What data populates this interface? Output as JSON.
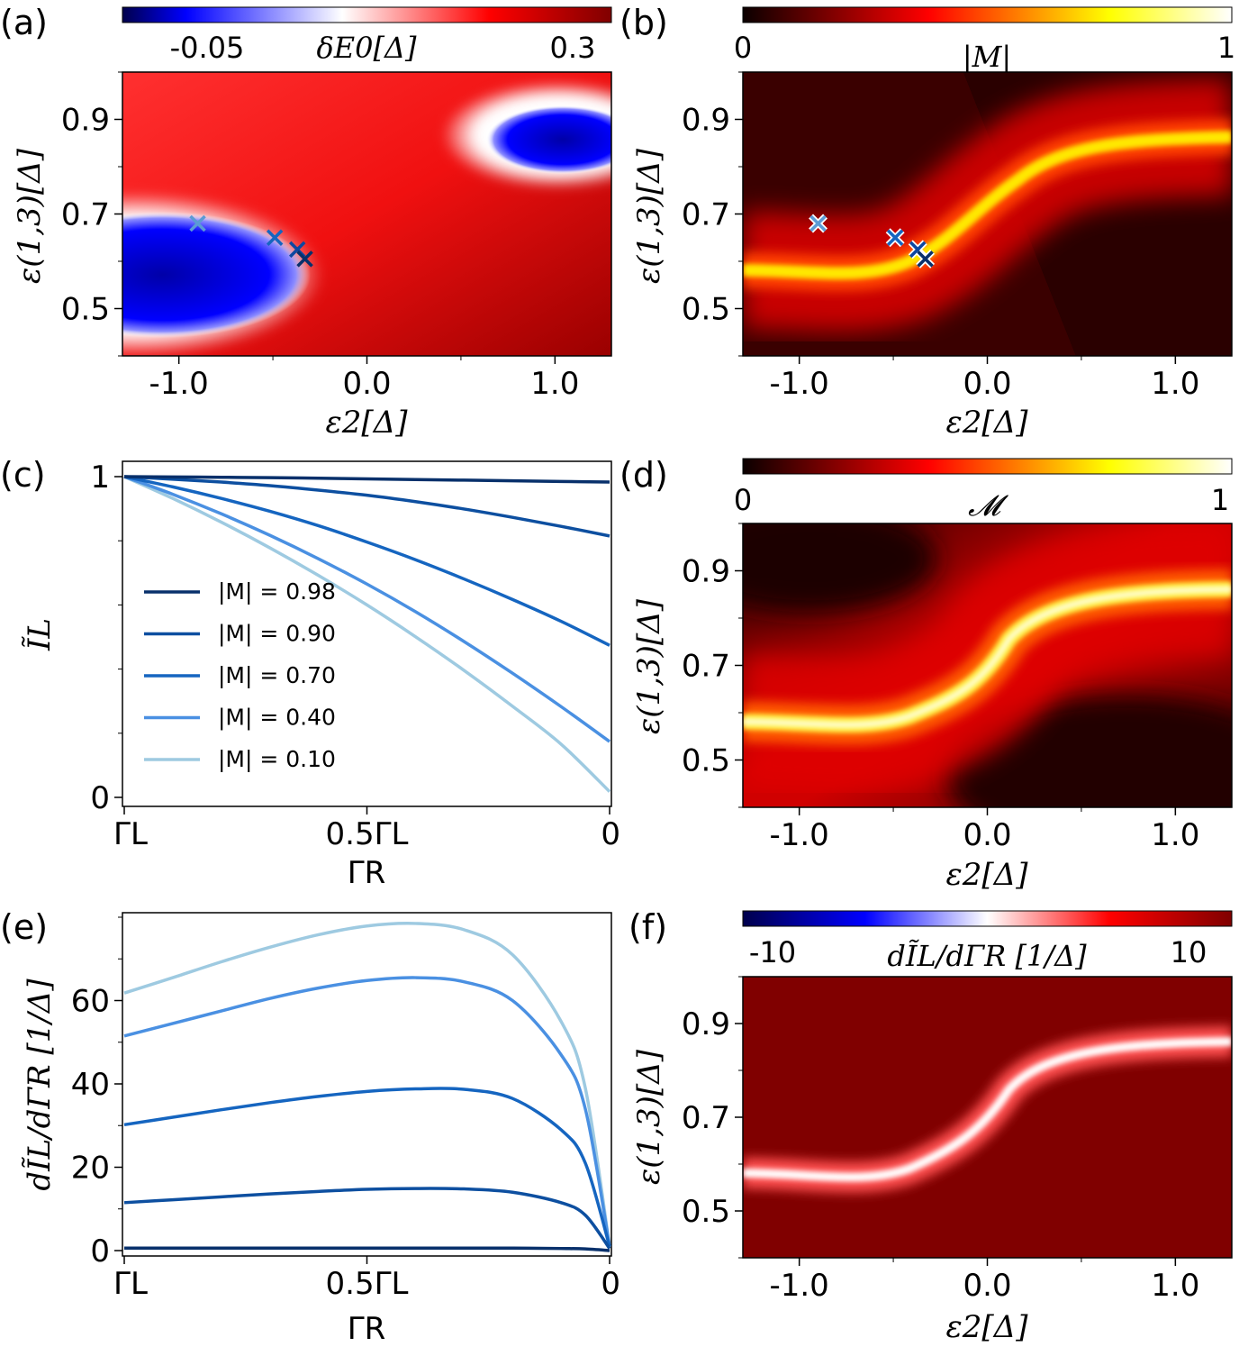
{
  "chart_data": [
    {
      "panel": "(a)",
      "type": "heatmap",
      "title": "",
      "colorbar": {
        "label": "δE0[Δ]",
        "ticks": [
          "-0.05",
          "0.3"
        ],
        "colormap": "seismic"
      },
      "xlabel": "ε2[Δ]",
      "ylabel": "ε(1,3)[Δ]",
      "xlim": [
        -1.3,
        1.3
      ],
      "ylim": [
        0.4,
        1.0
      ],
      "xticks": [
        "-1.0",
        "0.0",
        "1.0"
      ],
      "yticks": [
        "0.5",
        "0.7",
        "0.9"
      ],
      "markers": [
        {
          "x": -0.9,
          "y": 0.68,
          "color": "#5b9bd5"
        },
        {
          "x": -0.49,
          "y": 0.65,
          "color": "#1565c0"
        },
        {
          "x": -0.37,
          "y": 0.625,
          "color": "#0d47a1"
        },
        {
          "x": -0.33,
          "y": 0.605,
          "color": "#08306b"
        }
      ]
    },
    {
      "panel": "(b)",
      "type": "heatmap",
      "colorbar": {
        "label": "|M|",
        "ticks": [
          "0",
          "1"
        ],
        "colormap": "hot"
      },
      "xlabel": "ε2[Δ]",
      "ylabel": "ε(1,3)[Δ]",
      "xlim": [
        -1.3,
        1.3
      ],
      "ylim": [
        0.4,
        1.0
      ],
      "xticks": [
        "-1.0",
        "0.0",
        "1.0"
      ],
      "yticks": [
        "0.5",
        "0.7",
        "0.9"
      ],
      "markers": [
        {
          "x": -0.9,
          "y": 0.68,
          "color": "#5b9bd5"
        },
        {
          "x": -0.49,
          "y": 0.65,
          "color": "#1565c0"
        },
        {
          "x": -0.37,
          "y": 0.625,
          "color": "#0d47a1"
        },
        {
          "x": -0.33,
          "y": 0.605,
          "color": "#08306b"
        }
      ]
    },
    {
      "panel": "(c)",
      "type": "line",
      "xlabel": "ΓR",
      "ylabel": "ĨL",
      "xticks": [
        "ΓL",
        "0.5ΓL",
        "0"
      ],
      "yticks": [
        "0",
        "1"
      ],
      "x": [
        0,
        0.1,
        0.2,
        0.3,
        0.4,
        0.5,
        0.6,
        0.7,
        0.8,
        0.9,
        1.0
      ],
      "x_note": "fraction of the way from ΓR = ΓL to ΓR = 0",
      "ylim": [
        0,
        1
      ],
      "series": [
        {
          "name": "|M| = 0.98",
          "color": "#08306b",
          "values": [
            1.0,
            0.999,
            0.998,
            0.997,
            0.995,
            0.993,
            0.991,
            0.989,
            0.987,
            0.985,
            0.983
          ]
        },
        {
          "name": "|M| = 0.90",
          "color": "#0d4fa0",
          "values": [
            1.0,
            0.992,
            0.983,
            0.972,
            0.958,
            0.942,
            0.922,
            0.899,
            0.873,
            0.845,
            0.815
          ]
        },
        {
          "name": "|M| = 0.70",
          "color": "#1565c0",
          "values": [
            1.0,
            0.968,
            0.932,
            0.892,
            0.847,
            0.796,
            0.741,
            0.681,
            0.617,
            0.549,
            0.474
          ]
        },
        {
          "name": "|M| = 0.40",
          "color": "#4a90e2",
          "values": [
            1.0,
            0.945,
            0.884,
            0.817,
            0.744,
            0.665,
            0.579,
            0.486,
            0.387,
            0.283,
            0.174
          ]
        },
        {
          "name": "|M| = 0.10",
          "color": "#9ecae1",
          "values": [
            1.0,
            0.932,
            0.858,
            0.778,
            0.692,
            0.6,
            0.501,
            0.396,
            0.284,
            0.166,
            0.018
          ]
        }
      ],
      "legend": "center-left"
    },
    {
      "panel": "(d)",
      "type": "heatmap",
      "colorbar": {
        "label": "𝓜",
        "ticks": [
          "0",
          "1"
        ],
        "colormap": "hot"
      },
      "xlabel": "ε2[Δ]",
      "ylabel": "ε(1,3)[Δ]",
      "xlim": [
        -1.3,
        1.3
      ],
      "ylim": [
        0.4,
        1.0
      ],
      "xticks": [
        "-1.0",
        "0.0",
        "1.0"
      ],
      "yticks": [
        "0.5",
        "0.7",
        "0.9"
      ]
    },
    {
      "panel": "(e)",
      "type": "line",
      "xlabel": "ΓR",
      "ylabel": "dĨL/dΓR [1/Δ]",
      "xticks": [
        "ΓL",
        "0.5ΓL",
        "0"
      ],
      "yticks": [
        "0",
        "20",
        "40",
        "60"
      ],
      "x": [
        0,
        0.1,
        0.2,
        0.3,
        0.4,
        0.5,
        0.6,
        0.7,
        0.8,
        0.9,
        0.95,
        1.0
      ],
      "x_note": "fraction of the way from ΓR = ΓL to ΓR = 0",
      "ylim": [
        0,
        80
      ],
      "series": [
        {
          "name": "|M| = 0.98",
          "color": "#08306b",
          "values": [
            0.6,
            0.6,
            0.6,
            0.6,
            0.6,
            0.6,
            0.6,
            0.6,
            0.6,
            0.5,
            0.4,
            0.0
          ]
        },
        {
          "name": "|M| = 0.90",
          "color": "#0d4fa0",
          "values": [
            11.5,
            12.2,
            12.9,
            13.6,
            14.2,
            14.7,
            14.9,
            14.8,
            14.0,
            11.5,
            8.5,
            0.5
          ]
        },
        {
          "name": "|M| = 0.70",
          "color": "#1565c0",
          "values": [
            30.2,
            32.0,
            33.8,
            35.5,
            37.0,
            38.2,
            38.8,
            38.7,
            36.5,
            29.0,
            21.0,
            1.0
          ]
        },
        {
          "name": "|M| = 0.40",
          "color": "#4a90e2",
          "values": [
            51.5,
            54.5,
            57.5,
            60.5,
            63.0,
            64.8,
            65.5,
            64.5,
            60.0,
            47.0,
            34.0,
            1.0
          ]
        },
        {
          "name": "|M| = 0.10",
          "color": "#9ecae1",
          "values": [
            61.8,
            65.5,
            69.3,
            72.8,
            75.8,
            77.9,
            78.5,
            77.0,
            71.0,
            55.0,
            39.0,
            1.0
          ]
        }
      ]
    },
    {
      "panel": "(f)",
      "type": "heatmap",
      "colorbar": {
        "label": "dĨL/dΓR [1/Δ]",
        "ticks": [
          "-10",
          "10"
        ],
        "colormap": "seismic"
      },
      "xlabel": "ε2[Δ]",
      "ylabel": "ε(1,3)[Δ]",
      "xlim": [
        -1.3,
        1.3
      ],
      "ylim": [
        0.4,
        1.0
      ],
      "xticks": [
        "-1.0",
        "0.0",
        "1.0"
      ],
      "yticks": [
        "0.5",
        "0.7",
        "0.9"
      ]
    }
  ],
  "colors": {
    "seismic_neg": "#000080",
    "seismic_mid": "#ffffff",
    "seismic_pos": "#800000",
    "hot_low": "#0b0000",
    "hot_high": "#ffffe0"
  }
}
